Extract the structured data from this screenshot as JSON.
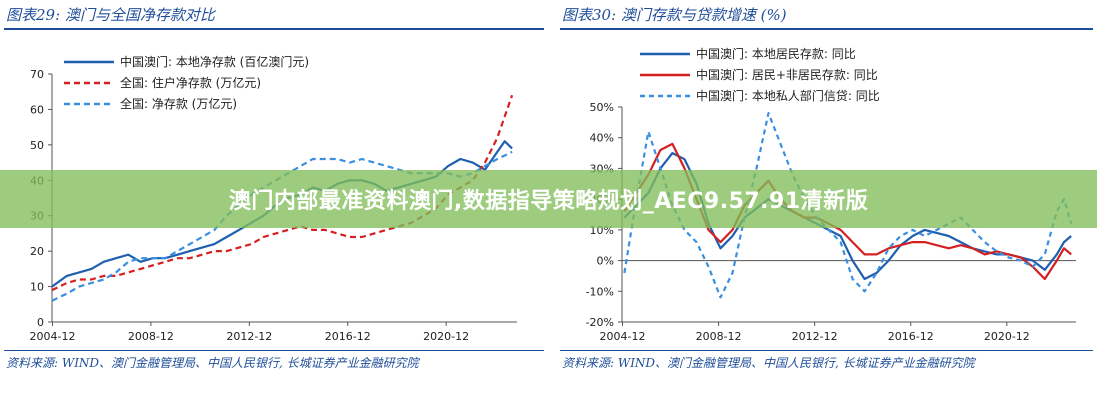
{
  "banner": "澳门内部最准资料澳门,数据指导策略规划_AEC9.57.91清新版",
  "chart_data": [
    {
      "type": "line",
      "title": "图表29: 澳门与全国净存款对比",
      "source": "资料来源: WIND、澳门金融管理局、中国人民银行, 长城证券产业金融研究院",
      "ylim": [
        0,
        70
      ],
      "yticks": [
        0,
        10,
        20,
        30,
        40,
        50,
        60,
        70
      ],
      "xlim": [
        2004.9,
        2023.8
      ],
      "xticks": [
        "2004-12",
        "2008-12",
        "2012-12",
        "2016-12",
        "2020-12"
      ],
      "xtick_values": [
        2004.92,
        2008.92,
        2012.92,
        2016.92,
        2020.92
      ],
      "legend": "top-left",
      "series": [
        {
          "name": "中国澳门: 本地净存款 (百亿澳门元)",
          "color": "#1f5fb0",
          "dash": "solid",
          "x": [
            2004.9,
            2005.5,
            2006.0,
            2006.5,
            2007.0,
            2007.5,
            2008.0,
            2008.5,
            2009.0,
            2009.5,
            2010.0,
            2010.5,
            2011.0,
            2011.5,
            2012.0,
            2012.5,
            2013.0,
            2013.5,
            2014.0,
            2014.5,
            2015.0,
            2015.5,
            2016.0,
            2016.5,
            2017.0,
            2017.5,
            2018.0,
            2018.5,
            2019.0,
            2019.5,
            2020.0,
            2020.5,
            2021.0,
            2021.5,
            2022.0,
            2022.5,
            2023.0,
            2023.3,
            2023.6
          ],
          "y": [
            10,
            13,
            14,
            15,
            17,
            18,
            19,
            17,
            18,
            18,
            19,
            20,
            21,
            22,
            24,
            26,
            28,
            30,
            33,
            35,
            36,
            38,
            37,
            39,
            40,
            40,
            39,
            37,
            38,
            39,
            40,
            41,
            44,
            46,
            45,
            43,
            48,
            51,
            49
          ]
        },
        {
          "name": "全国: 住户净存款 (万亿元)",
          "color": "#d42020",
          "dash": "6,4",
          "x": [
            2004.9,
            2005.5,
            2006.0,
            2006.5,
            2007.0,
            2007.5,
            2008.0,
            2008.5,
            2009.0,
            2009.5,
            2010.0,
            2010.5,
            2011.0,
            2011.5,
            2012.0,
            2012.5,
            2013.0,
            2013.5,
            2014.0,
            2014.5,
            2015.0,
            2015.5,
            2016.0,
            2016.5,
            2017.0,
            2017.5,
            2018.0,
            2018.5,
            2019.0,
            2019.5,
            2020.0,
            2020.5,
            2021.0,
            2021.5,
            2022.0,
            2022.5,
            2023.0,
            2023.3,
            2023.6
          ],
          "y": [
            9,
            11,
            12,
            12,
            13,
            13,
            14,
            15,
            16,
            17,
            18,
            18,
            19,
            20,
            20,
            21,
            22,
            24,
            25,
            26,
            27,
            26,
            26,
            25,
            24,
            24,
            25,
            26,
            27,
            28,
            30,
            32,
            36,
            38,
            40,
            45,
            52,
            58,
            64
          ]
        },
        {
          "name": "全国: 净存款 (万亿元)",
          "color": "#3a8fe0",
          "dash": "6,4",
          "x": [
            2004.9,
            2005.5,
            2006.0,
            2006.5,
            2007.0,
            2007.5,
            2008.0,
            2008.5,
            2009.0,
            2009.5,
            2010.0,
            2010.5,
            2011.0,
            2011.5,
            2012.0,
            2012.5,
            2013.0,
            2013.5,
            2014.0,
            2014.5,
            2015.0,
            2015.5,
            2016.0,
            2016.5,
            2017.0,
            2017.5,
            2018.0,
            2018.5,
            2019.0,
            2019.5,
            2020.0,
            2020.5,
            2021.0,
            2021.5,
            2022.0,
            2022.5,
            2023.0,
            2023.3,
            2023.6
          ],
          "y": [
            6,
            8,
            10,
            11,
            12,
            14,
            17,
            18,
            18,
            18,
            20,
            22,
            24,
            26,
            30,
            33,
            36,
            38,
            40,
            42,
            44,
            46,
            46,
            46,
            45,
            46,
            45,
            44,
            43,
            42,
            42,
            42,
            42,
            41,
            42,
            44,
            46,
            47,
            48
          ]
        }
      ]
    },
    {
      "type": "line",
      "title": "图表30: 澳门存款与贷款增速 (%)",
      "source": "资料来源: WIND、澳门金融管理局、中国人民银行, 长城证券产业金融研究院",
      "ylim": [
        -20,
        50
      ],
      "yticks": [
        "-20%",
        "-10%",
        "0%",
        "10%",
        "20%",
        "30%",
        "40%",
        "50%"
      ],
      "ytick_values": [
        -20,
        -10,
        0,
        10,
        20,
        30,
        40,
        50
      ],
      "xlim": [
        2004.9,
        2023.8
      ],
      "xticks": [
        "2004-12",
        "2008-12",
        "2012-12",
        "2016-12",
        "2020-12"
      ],
      "xtick_values": [
        2004.92,
        2008.92,
        2012.92,
        2016.92,
        2020.92
      ],
      "legend": "top-left",
      "series": [
        {
          "name": "中国澳门: 本地居民存款: 同比",
          "color": "#1f5fb0",
          "dash": "solid",
          "x": [
            2005.0,
            2005.5,
            2006.0,
            2006.5,
            2007.0,
            2007.5,
            2008.0,
            2008.5,
            2009.0,
            2009.5,
            2010.0,
            2010.5,
            2011.0,
            2011.5,
            2012.0,
            2012.5,
            2013.0,
            2013.5,
            2014.0,
            2014.5,
            2015.0,
            2015.5,
            2016.0,
            2016.5,
            2017.0,
            2017.5,
            2018.0,
            2018.5,
            2019.0,
            2019.5,
            2020.0,
            2020.5,
            2021.0,
            2021.5,
            2022.0,
            2022.5,
            2023.0,
            2023.3,
            2023.6
          ],
          "y": [
            14,
            18,
            22,
            30,
            35,
            33,
            25,
            12,
            4,
            8,
            14,
            17,
            20,
            18,
            16,
            14,
            12,
            10,
            8,
            0,
            -6,
            -4,
            0,
            5,
            8,
            10,
            9,
            8,
            6,
            4,
            3,
            2,
            2,
            1,
            0,
            -3,
            2,
            6,
            8
          ]
        },
        {
          "name": "中国澳门: 居民+非居民存款: 同比",
          "color": "#d42020",
          "dash": "solid",
          "x": [
            2005.0,
            2005.5,
            2006.0,
            2006.5,
            2007.0,
            2007.5,
            2008.0,
            2008.5,
            2009.0,
            2009.5,
            2010.0,
            2010.5,
            2011.0,
            2011.5,
            2012.0,
            2012.5,
            2013.0,
            2013.5,
            2014.0,
            2014.5,
            2015.0,
            2015.5,
            2016.0,
            2016.5,
            2017.0,
            2017.5,
            2018.0,
            2018.5,
            2019.0,
            2019.5,
            2020.0,
            2020.5,
            2021.0,
            2021.5,
            2022.0,
            2022.5,
            2023.0,
            2023.3,
            2023.6
          ],
          "y": [
            16,
            22,
            28,
            36,
            38,
            30,
            20,
            10,
            6,
            10,
            18,
            22,
            26,
            20,
            16,
            14,
            14,
            12,
            10,
            6,
            2,
            2,
            4,
            5,
            6,
            6,
            5,
            4,
            5,
            4,
            2,
            3,
            2,
            1,
            -2,
            -6,
            0,
            4,
            2
          ]
        },
        {
          "name": "中国澳门: 本地私人部门信贷: 同比",
          "color": "#3a8fe0",
          "dash": "5,4",
          "x": [
            2005.0,
            2005.5,
            2006.0,
            2006.5,
            2007.0,
            2007.5,
            2008.0,
            2008.5,
            2009.0,
            2009.5,
            2010.0,
            2010.5,
            2011.0,
            2011.5,
            2012.0,
            2012.5,
            2013.0,
            2013.5,
            2014.0,
            2014.5,
            2015.0,
            2015.5,
            2016.0,
            2016.5,
            2017.0,
            2017.5,
            2018.0,
            2018.5,
            2019.0,
            2019.5,
            2020.0,
            2020.5,
            2021.0,
            2021.5,
            2022.0,
            2022.5,
            2023.0,
            2023.3,
            2023.6
          ],
          "y": [
            -4,
            20,
            42,
            30,
            18,
            10,
            6,
            -2,
            -12,
            -4,
            14,
            30,
            48,
            38,
            28,
            20,
            14,
            10,
            6,
            -6,
            -10,
            -4,
            4,
            8,
            10,
            8,
            10,
            12,
            14,
            10,
            6,
            3,
            1,
            0,
            -2,
            2,
            16,
            20,
            12
          ]
        }
      ]
    }
  ]
}
